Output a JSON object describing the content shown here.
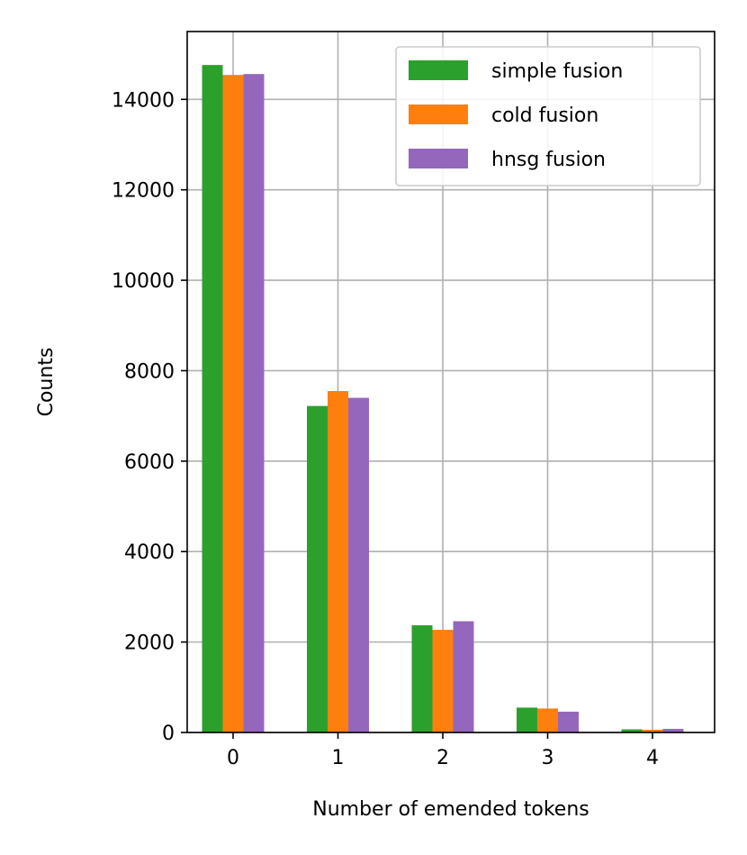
{
  "chart_data": {
    "type": "bar",
    "title": "",
    "xlabel": "Number of emended tokens",
    "ylabel": "Counts",
    "categories": [
      "0",
      "1",
      "2",
      "3",
      "4"
    ],
    "ylim": [
      0,
      15500
    ],
    "yticks": [
      0,
      2000,
      4000,
      6000,
      8000,
      10000,
      12000,
      14000
    ],
    "ytick_labels": [
      "0",
      "2000",
      "4000",
      "6000",
      "8000",
      "10000",
      "12000",
      "14000"
    ],
    "grid": true,
    "legend_position": "top-right",
    "series": [
      {
        "name": "simple fusion",
        "color": "#2ca02c",
        "values": [
          14760,
          7220,
          2370,
          550,
          70
        ]
      },
      {
        "name": "cold fusion",
        "color": "#ff7f0e",
        "values": [
          14540,
          7550,
          2270,
          530,
          60
        ]
      },
      {
        "name": "hnsg fusion",
        "color": "#9467bd",
        "values": [
          14560,
          7400,
          2460,
          460,
          80
        ]
      }
    ]
  }
}
